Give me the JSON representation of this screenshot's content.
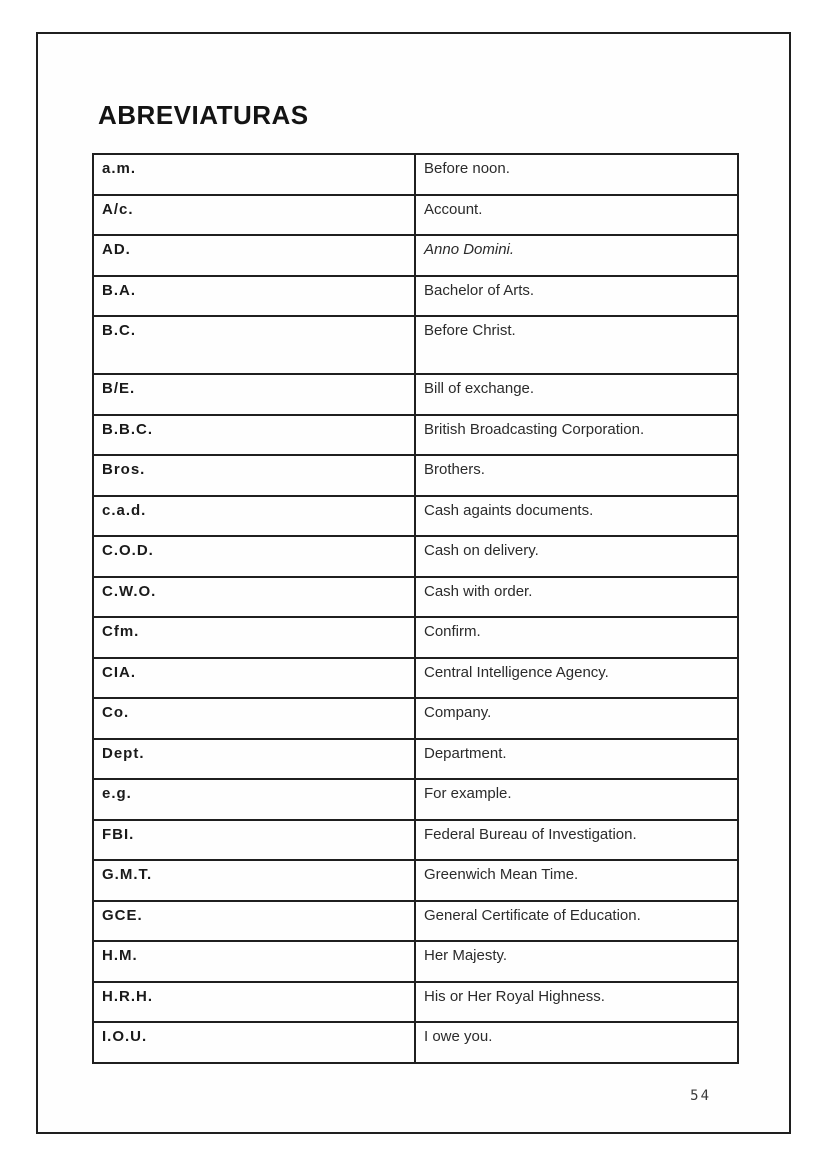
{
  "page": {
    "title": "ABREVIATURAS",
    "page_number": "54"
  },
  "table": {
    "rows": [
      {
        "abbr": "a.m.",
        "meaning": "Before noon.",
        "italic": false,
        "tall": false
      },
      {
        "abbr": "A/c.",
        "meaning": "Account.",
        "italic": false,
        "tall": false
      },
      {
        "abbr": "AD.",
        "meaning": "Anno Domini.",
        "italic": true,
        "tall": false
      },
      {
        "abbr": "B.A.",
        "meaning": "Bachelor of Arts.",
        "italic": false,
        "tall": false
      },
      {
        "abbr": "B.C.",
        "meaning": "Before Christ.",
        "italic": false,
        "tall": true
      },
      {
        "abbr": "B/E.",
        "meaning": "Bill of exchange.",
        "italic": false,
        "tall": false
      },
      {
        "abbr": "B.B.C.",
        "meaning": "British Broadcasting Corporation.",
        "italic": false,
        "tall": false
      },
      {
        "abbr": "Bros.",
        "meaning": "Brothers.",
        "italic": false,
        "tall": false
      },
      {
        "abbr": "c.a.d.",
        "meaning": "Cash againts documents.",
        "italic": false,
        "tall": false
      },
      {
        "abbr": "C.O.D.",
        "meaning": "Cash on delivery.",
        "italic": false,
        "tall": false
      },
      {
        "abbr": "C.W.O.",
        "meaning": "Cash with order.",
        "italic": false,
        "tall": false
      },
      {
        "abbr": "Cfm.",
        "meaning": "Confirm.",
        "italic": false,
        "tall": false
      },
      {
        "abbr": "CIA.",
        "meaning": "Central Intelligence Agency.",
        "italic": false,
        "tall": false
      },
      {
        "abbr": "Co.",
        "meaning": "Company.",
        "italic": false,
        "tall": false
      },
      {
        "abbr": "Dept.",
        "meaning": "Department.",
        "italic": false,
        "tall": false
      },
      {
        "abbr": "e.g.",
        "meaning": "For example.",
        "italic": false,
        "tall": false
      },
      {
        "abbr": "FBI.",
        "meaning": "Federal Bureau of Investigation.",
        "italic": false,
        "tall": false
      },
      {
        "abbr": "G.M.T.",
        "meaning": "Greenwich Mean Time.",
        "italic": false,
        "tall": false
      },
      {
        "abbr": "GCE.",
        "meaning": "General Certificate of Education.",
        "italic": false,
        "tall": false
      },
      {
        "abbr": "H.M.",
        "meaning": "Her Majesty.",
        "italic": false,
        "tall": false
      },
      {
        "abbr": "H.R.H.",
        "meaning": "His or Her Royal Highness.",
        "italic": false,
        "tall": false
      },
      {
        "abbr": "I.O.U.",
        "meaning": "I owe you.",
        "italic": false,
        "tall": false
      }
    ]
  }
}
